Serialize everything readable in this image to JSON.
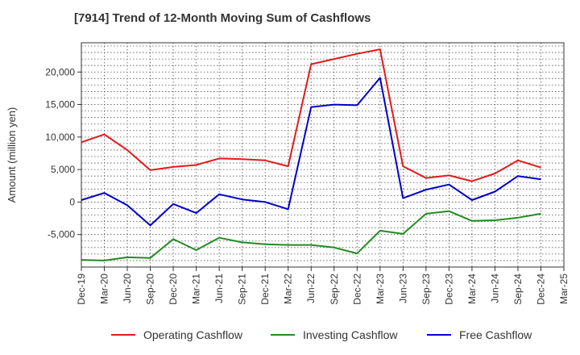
{
  "chart_data": {
    "type": "line",
    "title": "[7914]  Trend of 12-Month Moving Sum of Cashflows",
    "xlabel": "",
    "ylabel": "Amount (million yen)",
    "x": [
      "Dec-19",
      "Mar-20",
      "Jun-20",
      "Sep-20",
      "Dec-20",
      "Mar-21",
      "Jun-21",
      "Sep-21",
      "Dec-21",
      "Mar-22",
      "Jun-22",
      "Sep-22",
      "Dec-22",
      "Mar-23",
      "Jun-23",
      "Sep-23",
      "Dec-23",
      "Mar-24",
      "Jun-24",
      "Sep-24",
      "Dec-24",
      "Mar-25"
    ],
    "ylim": [
      -10000,
      24500
    ],
    "yticks": [
      -5000,
      0,
      5000,
      10000,
      15000,
      20000
    ],
    "ytick_labels": [
      "-5,000",
      "0",
      "5,000",
      "10,000",
      "15,000",
      "20,000"
    ],
    "grid": true,
    "legend_position": "bottom",
    "series": [
      {
        "name": "Operating Cashflow",
        "color": "#e31a1c",
        "values": [
          9200,
          10400,
          8000,
          4900,
          5400,
          5700,
          6700,
          6600,
          6400,
          5500,
          21200,
          22000,
          22800,
          23500,
          5500,
          3700,
          4100,
          3200,
          4400,
          6400,
          5300,
          null
        ]
      },
      {
        "name": "Investing Cashflow",
        "color": "#228b22",
        "values": [
          -8900,
          -9000,
          -8500,
          -8600,
          -5700,
          -7400,
          -5500,
          -6200,
          -6500,
          -6600,
          -6600,
          -7000,
          -7900,
          -4400,
          -4900,
          -1800,
          -1400,
          -2900,
          -2800,
          -2400,
          -1800,
          null
        ]
      },
      {
        "name": "Free Cashflow",
        "color": "#0000cc",
        "values": [
          300,
          1400,
          -500,
          -3600,
          -300,
          -1700,
          1200,
          400,
          0,
          -1100,
          14600,
          15000,
          14900,
          19100,
          600,
          1900,
          2700,
          300,
          1600,
          4000,
          3500,
          null
        ]
      }
    ]
  }
}
